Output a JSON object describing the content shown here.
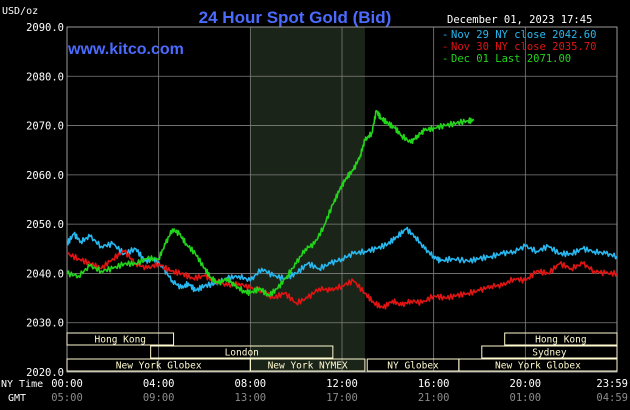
{
  "title": "24 Hour Spot Gold (Bid)",
  "y_unit_label": "USD/oz",
  "watermark": "www.kitco.com",
  "timestamp": "December 01, 2023 17:45",
  "row_labels": {
    "ny": "NY Time",
    "gmt": "GMT"
  },
  "colors": {
    "background": "#000000",
    "plot_background": "#000000",
    "grid": "#7f7f7f",
    "title": "#4b6bff",
    "watermark": "#4b6bff",
    "session_band": "#1b2418",
    "session_bar": "#fffbd0",
    "nov29": "#28b8f0",
    "nov30": "#e11414",
    "dec01": "#22d41a"
  },
  "sessions": [
    {
      "label": "Hong Kong",
      "row": 0,
      "start": 0,
      "end": 4.65
    },
    {
      "label": "Hong Kong",
      "row": 0,
      "start": 19.1,
      "end": 24
    },
    {
      "label": "London",
      "row": 1,
      "start": 3.65,
      "end": 11.6
    },
    {
      "label": "Sydney",
      "row": 1,
      "start": 18.1,
      "end": 24
    },
    {
      "label": "New York Globex",
      "row": 2,
      "start": 0,
      "end": 8.0
    },
    {
      "label": "New York NYMEX",
      "row": 2,
      "start": 8.0,
      "end": 13.0
    },
    {
      "label": "NY Globex",
      "row": 2,
      "start": 13.1,
      "end": 17.1
    },
    {
      "label": "New York Globex",
      "row": 2,
      "start": 17.1,
      "end": 24
    }
  ],
  "chart_data": {
    "type": "line",
    "title": "24 Hour Spot Gold (Bid)",
    "ylabel": "USD/oz",
    "ylim": [
      2020,
      2090
    ],
    "yticks": [
      "2020.0",
      "2030.0",
      "2040.0",
      "2050.0",
      "2060.0",
      "2070.0",
      "2080.0",
      "2090.0"
    ],
    "xlim": [
      0,
      24
    ],
    "x_unit": "hours (NY time)",
    "xticks_ny": [
      "00:00",
      "04:00",
      "08:00",
      "12:00",
      "16:00",
      "20:00",
      "23:59"
    ],
    "xticks_gmt": [
      "05:00",
      "09:00",
      "13:00",
      "17:00",
      "21:00",
      "01:00",
      "04:59"
    ],
    "grid": true,
    "legend_position": "top-right",
    "highlight_band": [
      8.0,
      13.0
    ],
    "series": [
      {
        "name": "Nov 29 NY close 2042.60",
        "color_key": "nov29",
        "points": [
          [
            0,
            2046
          ],
          [
            0.3,
            2048
          ],
          [
            0.6,
            2046.5
          ],
          [
            1,
            2047.5
          ],
          [
            1.5,
            2045.5
          ],
          [
            2,
            2046
          ],
          [
            2.5,
            2044
          ],
          [
            3,
            2045
          ],
          [
            3.4,
            2042.5
          ],
          [
            3.8,
            2043
          ],
          [
            4.2,
            2041
          ],
          [
            4.6,
            2038.5
          ],
          [
            5,
            2037
          ],
          [
            5.3,
            2038
          ],
          [
            5.6,
            2036.5
          ],
          [
            6,
            2037.5
          ],
          [
            6.5,
            2038
          ],
          [
            7,
            2039
          ],
          [
            7.5,
            2039.5
          ],
          [
            8,
            2038.5
          ],
          [
            8.5,
            2041
          ],
          [
            9,
            2039.5
          ],
          [
            9.5,
            2039
          ],
          [
            10,
            2040
          ],
          [
            10.5,
            2042
          ],
          [
            11,
            2041
          ],
          [
            11.5,
            2042
          ],
          [
            12,
            2043
          ],
          [
            12.5,
            2044
          ],
          [
            13,
            2044.5
          ],
          [
            13.5,
            2045
          ],
          [
            14,
            2046
          ],
          [
            14.4,
            2047.5
          ],
          [
            14.8,
            2049
          ],
          [
            15.2,
            2047.5
          ],
          [
            15.6,
            2045
          ],
          [
            16,
            2043.5
          ],
          [
            16.3,
            2042.5
          ],
          [
            16.8,
            2043
          ],
          [
            17.5,
            2042.5
          ],
          [
            18,
            2043
          ],
          [
            18.5,
            2043.5
          ],
          [
            19,
            2044
          ],
          [
            19.5,
            2044.5
          ],
          [
            20,
            2045.5
          ],
          [
            20.5,
            2044.5
          ],
          [
            21,
            2045.5
          ],
          [
            21.5,
            2044
          ],
          [
            22,
            2044
          ],
          [
            22.5,
            2045
          ],
          [
            23,
            2044.5
          ],
          [
            23.5,
            2044
          ],
          [
            24,
            2043.5
          ]
        ]
      },
      {
        "name": "Nov 30 NY close 2035.70",
        "color_key": "nov30",
        "points": [
          [
            0,
            2044
          ],
          [
            0.5,
            2043
          ],
          [
            1,
            2042
          ],
          [
            1.5,
            2041
          ],
          [
            2,
            2043
          ],
          [
            2.5,
            2044.5
          ],
          [
            3,
            2042
          ],
          [
            3.5,
            2041
          ],
          [
            4,
            2042
          ],
          [
            4.5,
            2040.5
          ],
          [
            5,
            2040
          ],
          [
            5.5,
            2039
          ],
          [
            6,
            2039.5
          ],
          [
            6.5,
            2038.5
          ],
          [
            7,
            2037.5
          ],
          [
            7.5,
            2038
          ],
          [
            8,
            2037
          ],
          [
            8.5,
            2036.5
          ],
          [
            9,
            2035
          ],
          [
            9.5,
            2036
          ],
          [
            10,
            2034
          ],
          [
            10.5,
            2035
          ],
          [
            11,
            2037
          ],
          [
            11.5,
            2036.5
          ],
          [
            12,
            2037.5
          ],
          [
            12.5,
            2038.5
          ],
          [
            13,
            2036
          ],
          [
            13.4,
            2034
          ],
          [
            13.8,
            2033
          ],
          [
            14.2,
            2034.5
          ],
          [
            14.6,
            2033.5
          ],
          [
            15,
            2034.5
          ],
          [
            15.5,
            2034
          ],
          [
            16,
            2035.5
          ],
          [
            16.5,
            2035
          ],
          [
            17,
            2035.5
          ],
          [
            17.5,
            2036
          ],
          [
            18,
            2036.5
          ],
          [
            18.5,
            2037.5
          ],
          [
            19,
            2037.5
          ],
          [
            19.5,
            2039
          ],
          [
            20,
            2038.5
          ],
          [
            20.5,
            2040.5
          ],
          [
            21,
            2040
          ],
          [
            21.5,
            2042
          ],
          [
            22,
            2041
          ],
          [
            22.5,
            2042
          ],
          [
            23,
            2040.5
          ],
          [
            23.5,
            2040
          ],
          [
            24,
            2040
          ]
        ]
      },
      {
        "name": "Dec 01 Last 2071.00",
        "color_key": "dec01",
        "points": [
          [
            0,
            2040
          ],
          [
            0.5,
            2039.5
          ],
          [
            1,
            2041.5
          ],
          [
            1.5,
            2040.5
          ],
          [
            2,
            2041
          ],
          [
            2.5,
            2042
          ],
          [
            3,
            2042
          ],
          [
            3.5,
            2043
          ],
          [
            4,
            2043
          ],
          [
            4.3,
            2046
          ],
          [
            4.6,
            2049
          ],
          [
            4.9,
            2048
          ],
          [
            5.2,
            2046
          ],
          [
            5.6,
            2044
          ],
          [
            6,
            2041
          ],
          [
            6.3,
            2039
          ],
          [
            6.6,
            2038
          ],
          [
            7,
            2039
          ],
          [
            7.3,
            2037.5
          ],
          [
            7.7,
            2036.5
          ],
          [
            8,
            2036
          ],
          [
            8.4,
            2037
          ],
          [
            8.8,
            2035.5
          ],
          [
            9.2,
            2037
          ],
          [
            9.6,
            2039.5
          ],
          [
            10,
            2042
          ],
          [
            10.4,
            2045
          ],
          [
            10.8,
            2046
          ],
          [
            11.2,
            2049.5
          ],
          [
            11.6,
            2054
          ],
          [
            11.9,
            2057
          ],
          [
            12.2,
            2059.5
          ],
          [
            12.5,
            2061
          ],
          [
            12.8,
            2064
          ],
          [
            13,
            2067
          ],
          [
            13.3,
            2068.5
          ],
          [
            13.5,
            2073
          ],
          [
            13.7,
            2071.5
          ],
          [
            14,
            2070.5
          ],
          [
            14.3,
            2069.5
          ],
          [
            14.6,
            2068
          ],
          [
            15,
            2066.5
          ],
          [
            15.3,
            2068
          ],
          [
            15.6,
            2069
          ],
          [
            16,
            2069.5
          ],
          [
            16.5,
            2070
          ],
          [
            17,
            2070.5
          ],
          [
            17.5,
            2071
          ],
          [
            17.75,
            2071
          ]
        ]
      }
    ]
  }
}
